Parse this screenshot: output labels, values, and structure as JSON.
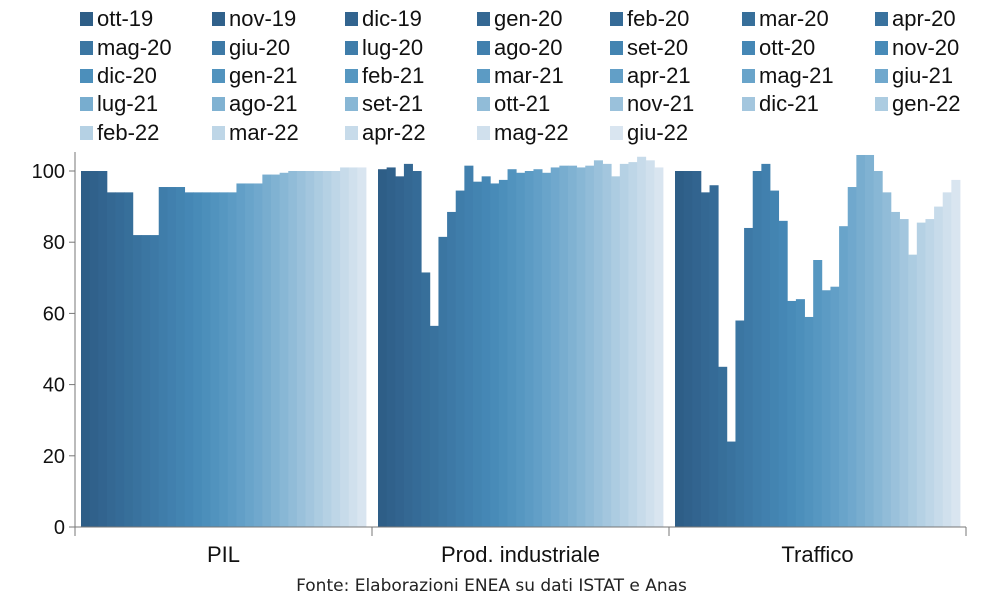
{
  "chart_data": {
    "type": "bar",
    "title": "",
    "xlabel": "",
    "ylabel": "",
    "ylim": [
      0,
      105
    ],
    "yticks": [
      0,
      20,
      40,
      60,
      80,
      100
    ],
    "grid": false,
    "legend_position": "top",
    "categories": [
      "PIL",
      "Prod. industriale",
      "Traffico"
    ],
    "series_names": [
      "ott-19",
      "nov-19",
      "dic-19",
      "gen-20",
      "feb-20",
      "mar-20",
      "apr-20",
      "mag-20",
      "giu-20",
      "lug-20",
      "ago-20",
      "set-20",
      "ott-20",
      "nov-20",
      "dic-20",
      "gen-21",
      "feb-21",
      "mar-21",
      "apr-21",
      "mag-21",
      "giu-21",
      "lug-21",
      "ago-21",
      "set-21",
      "ott-21",
      "nov-21",
      "dic-21",
      "gen-22",
      "feb-22",
      "mar-22",
      "apr-22",
      "mag-22",
      "giu-22"
    ],
    "series_colors": [
      "#2e5e87",
      "#30618b",
      "#32648f",
      "#346893",
      "#356b97",
      "#376f9a",
      "#39729e",
      "#3b76a2",
      "#3d79a6",
      "#3f7daa",
      "#4180ae",
      "#4384b1",
      "#4587b5",
      "#488bb8",
      "#4c8fbb",
      "#5193be",
      "#5697c1",
      "#5c9bc4",
      "#629fc7",
      "#69a4ca",
      "#70a8cd",
      "#78adcf",
      "#80b2d2",
      "#88b7d5",
      "#91bcd8",
      "#9ac1db",
      "#a3c6de",
      "#acccE1",
      "#b5d1e4",
      "#bed6e7",
      "#c7dbea",
      "#d0e0ed",
      "#d9e5f0"
    ],
    "values": {
      "PIL": [
        100,
        100,
        100,
        94,
        94,
        94,
        82,
        82,
        82,
        95.5,
        95.5,
        95.5,
        94,
        94,
        94,
        94,
        94,
        94,
        96.5,
        96.5,
        96.5,
        99,
        99,
        99.5,
        100,
        100,
        100,
        100,
        100,
        100,
        101,
        101,
        101
      ],
      "Prod. industriale": [
        100.5,
        101,
        98.5,
        102,
        100,
        71.5,
        56.5,
        81.5,
        88.5,
        94.5,
        101.5,
        97,
        98.5,
        96.5,
        97.5,
        100.5,
        99.5,
        100,
        100.5,
        99.5,
        101,
        101.5,
        101.5,
        101,
        101.5,
        103,
        102,
        98.5,
        102,
        102.5,
        104,
        103,
        101
      ],
      "Traffico": [
        100,
        100,
        100,
        94,
        96,
        45,
        24,
        58,
        84,
        100,
        102,
        94.5,
        86,
        63.5,
        64,
        59,
        75,
        66.5,
        67.5,
        84.5,
        95.5,
        104.5,
        104.5,
        100,
        94,
        88.5,
        86.5,
        76.5,
        85.5,
        86.5,
        90,
        94,
        97.5
      ]
    }
  },
  "source_text": "Fonte: Elaborazioni ENEA su dati ISTAT e Anas"
}
